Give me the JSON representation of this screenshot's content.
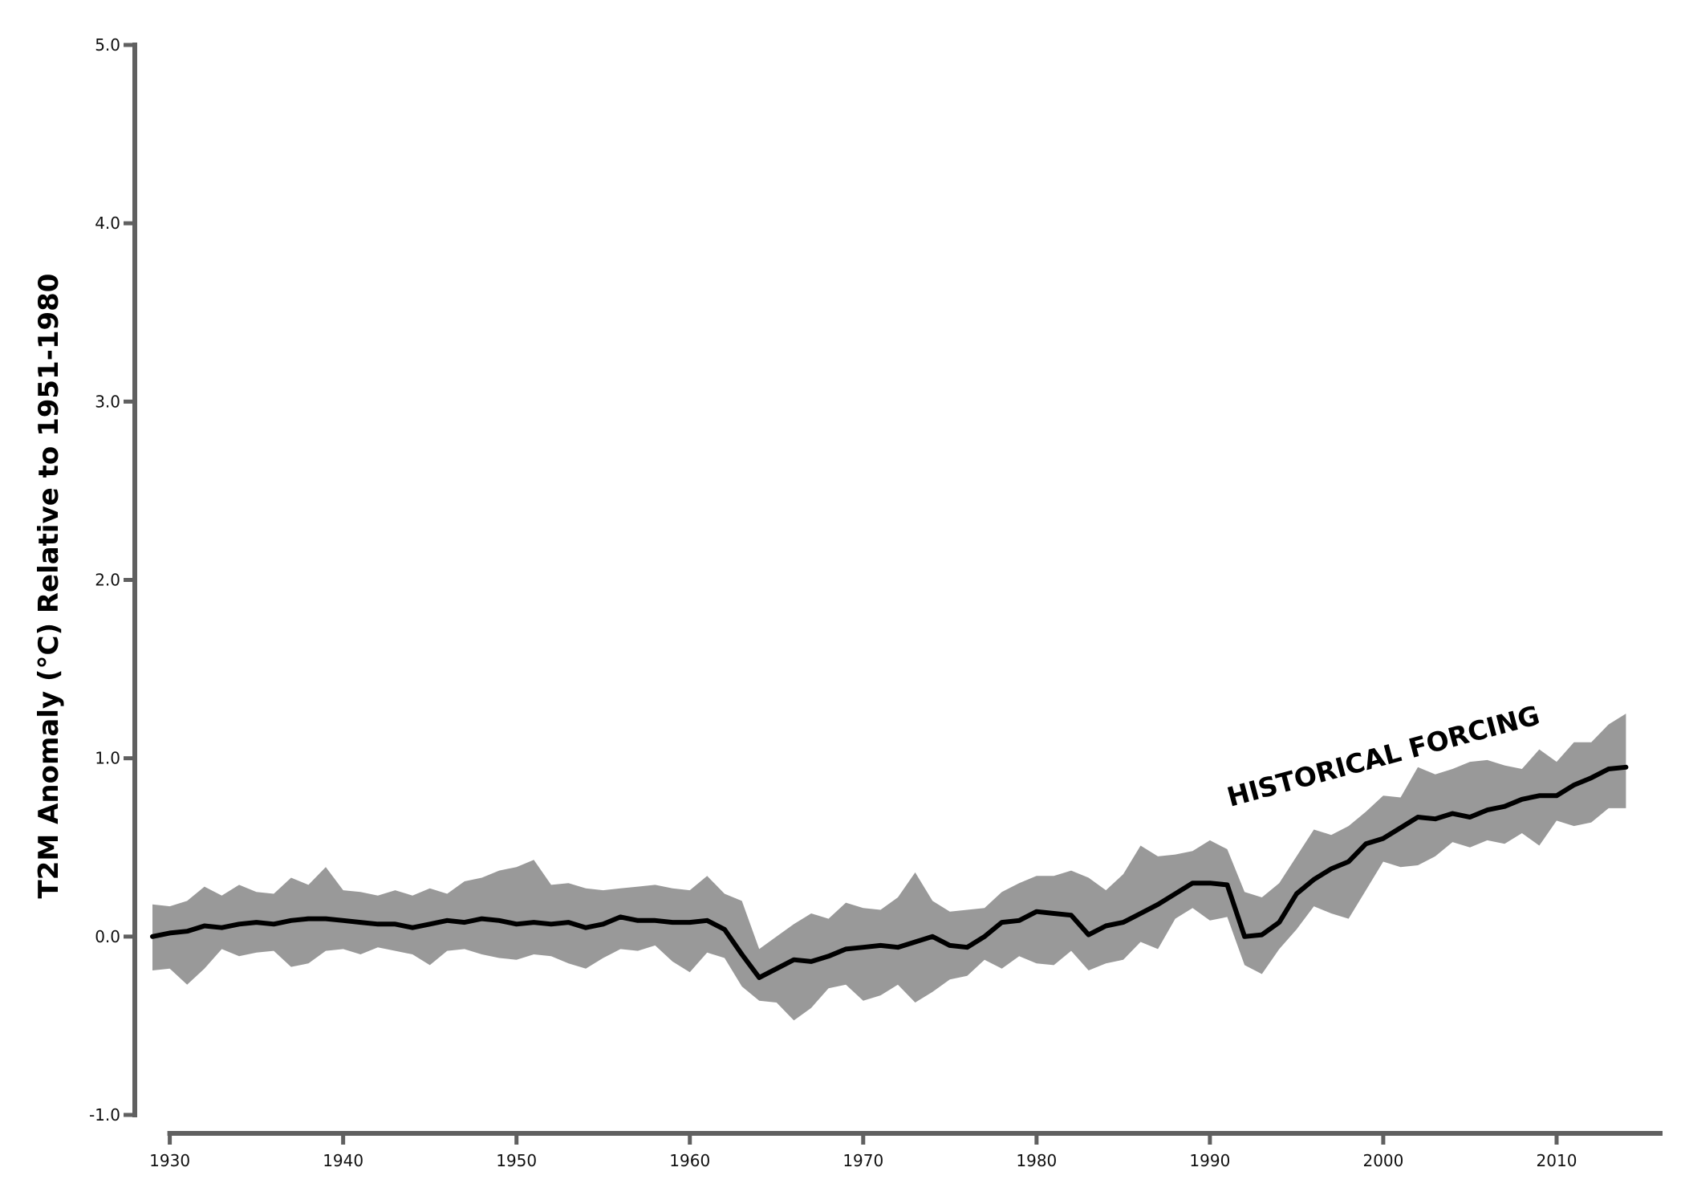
{
  "chart_data": {
    "type": "line",
    "title": "",
    "xlabel": "",
    "ylabel": "T2M Anomaly (°C) Relative to 1951-1980",
    "xlim": [
      1929,
      2015
    ],
    "ylim": [
      -1.0,
      5.0
    ],
    "grid": false,
    "x_ticks": [
      1930,
      1940,
      1950,
      1960,
      1970,
      1980,
      1990,
      2000,
      2010
    ],
    "x_tick_labels": [
      "1930",
      "1940",
      "1950",
      "1960",
      "1970",
      "1980",
      "1990",
      "2000",
      "2010"
    ],
    "y_ticks": [
      -1.0,
      0.0,
      1.0,
      2.0,
      3.0,
      4.0,
      5.0
    ],
    "y_tick_labels": [
      "-1.0",
      "0.0",
      "1.0",
      "2.0",
      "3.0",
      "4.0",
      "5.0"
    ],
    "annotation": "HISTORICAL FORCING",
    "colors": {
      "axis": "#606060",
      "band": "#999999",
      "line": "#000000"
    },
    "x": [
      1929,
      1930,
      1931,
      1932,
      1933,
      1934,
      1935,
      1936,
      1937,
      1938,
      1939,
      1940,
      1941,
      1942,
      1943,
      1944,
      1945,
      1946,
      1947,
      1948,
      1949,
      1950,
      1951,
      1952,
      1953,
      1954,
      1955,
      1956,
      1957,
      1958,
      1959,
      1960,
      1961,
      1962,
      1963,
      1964,
      1965,
      1966,
      1967,
      1968,
      1969,
      1970,
      1971,
      1972,
      1973,
      1974,
      1975,
      1976,
      1977,
      1978,
      1979,
      1980,
      1981,
      1982,
      1983,
      1984,
      1985,
      1986,
      1987,
      1988,
      1989,
      1990,
      1991,
      1992,
      1993,
      1994,
      1995,
      1996,
      1997,
      1998,
      1999,
      2000,
      2001,
      2002,
      2003,
      2004,
      2005,
      2006,
      2007,
      2008,
      2009,
      2010,
      2011,
      2012,
      2013,
      2014
    ],
    "series": [
      {
        "role": "mean",
        "values": [
          0.0,
          0.02,
          0.03,
          0.06,
          0.05,
          0.07,
          0.08,
          0.07,
          0.09,
          0.1,
          0.1,
          0.09,
          0.08,
          0.07,
          0.07,
          0.05,
          0.07,
          0.09,
          0.08,
          0.1,
          0.09,
          0.07,
          0.08,
          0.07,
          0.08,
          0.05,
          0.07,
          0.11,
          0.09,
          0.09,
          0.08,
          0.08,
          0.09,
          0.04,
          -0.1,
          -0.23,
          -0.18,
          -0.13,
          -0.14,
          -0.11,
          -0.07,
          -0.06,
          -0.05,
          -0.06,
          -0.03,
          0.0,
          -0.05,
          -0.06,
          0.0,
          0.08,
          0.09,
          0.14,
          0.13,
          0.12,
          0.01,
          0.06,
          0.08,
          0.13,
          0.18,
          0.24,
          0.3,
          0.3,
          0.29,
          0.0,
          0.01,
          0.08,
          0.24,
          0.32,
          0.38,
          0.42,
          0.52,
          0.55,
          0.61,
          0.67,
          0.66,
          0.69,
          0.67,
          0.71,
          0.73,
          0.77,
          0.79,
          0.79,
          0.85,
          0.89,
          0.94,
          0.95
        ]
      },
      {
        "role": "band-upper",
        "values": [
          0.18,
          0.17,
          0.2,
          0.28,
          0.23,
          0.29,
          0.25,
          0.24,
          0.33,
          0.29,
          0.39,
          0.26,
          0.25,
          0.23,
          0.26,
          0.23,
          0.27,
          0.24,
          0.31,
          0.33,
          0.37,
          0.39,
          0.43,
          0.29,
          0.3,
          0.27,
          0.26,
          0.27,
          0.28,
          0.29,
          0.27,
          0.26,
          0.34,
          0.24,
          0.2,
          -0.07,
          0.0,
          0.07,
          0.13,
          0.1,
          0.19,
          0.16,
          0.15,
          0.22,
          0.36,
          0.2,
          0.14,
          0.15,
          0.16,
          0.25,
          0.3,
          0.34,
          0.34,
          0.37,
          0.33,
          0.26,
          0.35,
          0.51,
          0.45,
          0.46,
          0.48,
          0.54,
          0.49,
          0.25,
          0.22,
          0.3,
          0.45,
          0.6,
          0.57,
          0.62,
          0.7,
          0.79,
          0.78,
          0.95,
          0.91,
          0.94,
          0.98,
          0.99,
          0.96,
          0.94,
          1.05,
          0.98,
          1.09,
          1.09,
          1.19,
          1.25
        ]
      },
      {
        "role": "band-lower",
        "values": [
          -0.19,
          -0.18,
          -0.27,
          -0.18,
          -0.07,
          -0.11,
          -0.09,
          -0.08,
          -0.17,
          -0.15,
          -0.08,
          -0.07,
          -0.1,
          -0.06,
          -0.08,
          -0.1,
          -0.16,
          -0.08,
          -0.07,
          -0.1,
          -0.12,
          -0.13,
          -0.1,
          -0.11,
          -0.15,
          -0.18,
          -0.12,
          -0.07,
          -0.08,
          -0.05,
          -0.14,
          -0.2,
          -0.09,
          -0.12,
          -0.28,
          -0.36,
          -0.37,
          -0.47,
          -0.4,
          -0.29,
          -0.27,
          -0.36,
          -0.33,
          -0.27,
          -0.37,
          -0.31,
          -0.24,
          -0.22,
          -0.13,
          -0.18,
          -0.11,
          -0.15,
          -0.16,
          -0.08,
          -0.19,
          -0.15,
          -0.13,
          -0.03,
          -0.07,
          0.1,
          0.16,
          0.09,
          0.11,
          -0.16,
          -0.21,
          -0.07,
          0.04,
          0.17,
          0.13,
          0.1,
          0.26,
          0.42,
          0.39,
          0.4,
          0.45,
          0.53,
          0.5,
          0.54,
          0.52,
          0.58,
          0.51,
          0.65,
          0.62,
          0.64,
          0.72,
          0.72
        ]
      }
    ]
  }
}
